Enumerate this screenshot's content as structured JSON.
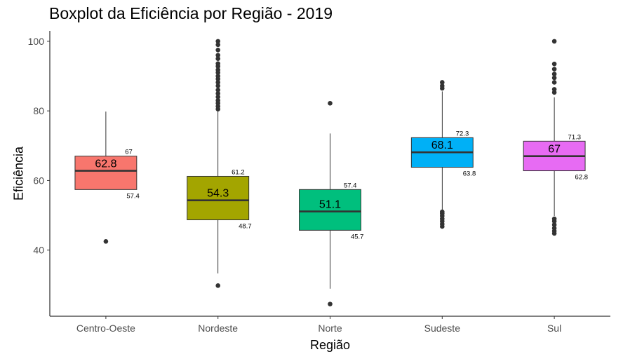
{
  "chart_data": {
    "type": "boxplot",
    "title": "Boxplot da Eficiência por Região - 2019",
    "xlabel": "Região",
    "ylabel": "Eficiência",
    "ylim": [
      21,
      103
    ],
    "yticks": [
      40,
      60,
      80,
      100
    ],
    "grid": false,
    "legend": "none",
    "categories": [
      "Centro-Oeste",
      "Nordeste",
      "Norte",
      "Sudeste",
      "Sul"
    ],
    "boxes": [
      {
        "category": "Centro-Oeste",
        "color": "#F8766D",
        "q1": 57.4,
        "median": 62.8,
        "q3": 67,
        "whisker_low": 57.4,
        "whisker_high": 79.8,
        "median_label": "62.8",
        "q1_label": "57.4",
        "q3_label": "67",
        "outliers": [
          42.5
        ]
      },
      {
        "category": "Nordeste",
        "color": "#A3A500",
        "q1": 48.7,
        "median": 54.3,
        "q3": 61.2,
        "whisker_low": 33.3,
        "whisker_high": 79.9,
        "median_label": "54.3",
        "q1_label": "48.7",
        "q3_label": "61.2",
        "outliers": [
          29.8,
          80.5,
          81.3,
          82.2,
          83.0,
          84.0,
          85.0,
          86.0,
          87.2,
          88.2,
          89.2,
          90.0,
          91.0,
          91.8,
          92.8,
          93.6,
          95.0,
          96.0,
          97.5,
          99.0,
          100
        ]
      },
      {
        "category": "Norte",
        "color": "#00BF7D",
        "q1": 45.7,
        "median": 51.1,
        "q3": 57.4,
        "whisker_low": 28.9,
        "whisker_high": 73.5,
        "median_label": "51.1",
        "q1_label": "45.7",
        "q3_label": "57.4",
        "outliers": [
          24.5,
          82.2
        ]
      },
      {
        "category": "Sudeste",
        "color": "#00B0F6",
        "q1": 63.8,
        "median": 68.1,
        "q3": 72.3,
        "whisker_low": 51.5,
        "whisker_high": 85.6,
        "median_label": "68.1",
        "q1_label": "63.8",
        "q3_label": "72.3",
        "outliers": [
          46.8,
          47.5,
          48.3,
          49.0,
          49.8,
          50.5,
          51.0,
          86.5,
          87.2,
          88.2
        ]
      },
      {
        "category": "Sul",
        "color": "#E76BF3",
        "q1": 62.8,
        "median": 67,
        "q3": 71.3,
        "whisker_low": 49.8,
        "whisker_high": 83.9,
        "median_label": "67",
        "q1_label": "62.8",
        "q3_label": "71.3",
        "outliers": [
          44.8,
          45.5,
          46.3,
          47.3,
          48.3,
          49.0,
          85.3,
          86.2,
          88.2,
          89.5,
          90.6,
          92.0,
          93.5,
          100
        ]
      }
    ]
  }
}
